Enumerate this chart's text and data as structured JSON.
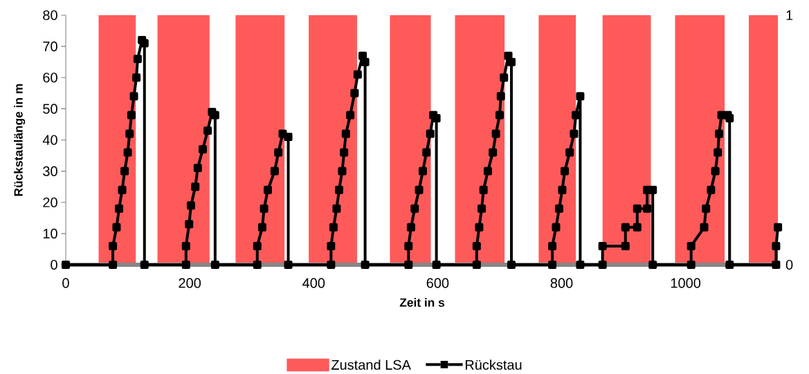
{
  "chart_data": {
    "type": "line",
    "xlabel": "Zeit in s",
    "ylabel": "Rückstaulänge in m",
    "xlim": [
      0,
      1150
    ],
    "xticks": [
      0,
      200,
      400,
      600,
      800,
      1000
    ],
    "ylim": [
      0,
      80
    ],
    "yticks": [
      0,
      10,
      20,
      30,
      40,
      50,
      60,
      70,
      80
    ],
    "y2lim": [
      0,
      1
    ],
    "y2ticks": [
      0,
      1
    ],
    "legend": "bottom",
    "series": [
      {
        "name": "Zustand LSA",
        "type": "area",
        "axis": "y2",
        "color": "#ff5a5a",
        "x": [
          0,
          53,
          53,
          113,
          113,
          148,
          148,
          232,
          232,
          274,
          274,
          353,
          353,
          392,
          392,
          470,
          470,
          523,
          523,
          589,
          589,
          628,
          628,
          708,
          708,
          763,
          763,
          823,
          823,
          866,
          866,
          944,
          944,
          983,
          983,
          1063,
          1063,
          1102,
          1102,
          1149,
          1149
        ],
        "values": [
          0,
          0,
          1,
          1,
          0,
          0,
          1,
          1,
          0,
          0,
          1,
          1,
          0,
          0,
          1,
          1,
          0,
          0,
          1,
          1,
          0,
          0,
          1,
          1,
          0,
          0,
          1,
          1,
          0,
          0,
          1,
          1,
          0,
          0,
          1,
          1,
          0,
          0,
          1,
          1,
          0
        ]
      },
      {
        "name": "Rückstau",
        "color": "#000000",
        "marker": "square",
        "line_style": "solid",
        "x": [
          0,
          76,
          76,
          82,
          86,
          91,
          95,
          100,
          103,
          106,
          110,
          114,
          116,
          123,
          127,
          127,
          194,
          194,
          199,
          202,
          209,
          213,
          221,
          229,
          236,
          241,
          241,
          309,
          309,
          317,
          320,
          326,
          337,
          343,
          350,
          359,
          359,
          428,
          428,
          432,
          437,
          441,
          446,
          449,
          452,
          459,
          466,
          471,
          479,
          483,
          483,
          553,
          553,
          557,
          563,
          570,
          576,
          582,
          588,
          593,
          598,
          598,
          663,
          663,
          667,
          671,
          674,
          681,
          689,
          694,
          700,
          702,
          707,
          714,
          719,
          719,
          785,
          785,
          791,
          796,
          801,
          805,
          813,
          820,
          823,
          830,
          830,
          866,
          866,
          903,
          903,
          922,
          922,
          938,
          938,
          947,
          947,
          1009,
          1009,
          1030,
          1033,
          1041,
          1048,
          1052,
          1054,
          1058,
          1068,
          1071,
          1071,
          1146,
          1146,
          1149
        ],
        "values": [
          0,
          0,
          6,
          12,
          18,
          24,
          30,
          36,
          42,
          48,
          54,
          60,
          66,
          72,
          71,
          0,
          0,
          6,
          13,
          19,
          25,
          31,
          37,
          43,
          49,
          48,
          0,
          0,
          6,
          12,
          18,
          24,
          30,
          36,
          42,
          41,
          0,
          0,
          6,
          12,
          18,
          24,
          30,
          36,
          42,
          48,
          55,
          61,
          67,
          65,
          0,
          0,
          6,
          12,
          18,
          24,
          30,
          36,
          42,
          48,
          47,
          0,
          0,
          6,
          12,
          18,
          24,
          30,
          36,
          42,
          48,
          54,
          60,
          67,
          65,
          0,
          0,
          6,
          12,
          18,
          24,
          30,
          36,
          42,
          48,
          54,
          0,
          0,
          6,
          6,
          12,
          12,
          18,
          18,
          24,
          24,
          0,
          0,
          6,
          12,
          18,
          24,
          30,
          36,
          42,
          48,
          48,
          47,
          0,
          0,
          6,
          12
        ]
      }
    ]
  }
}
